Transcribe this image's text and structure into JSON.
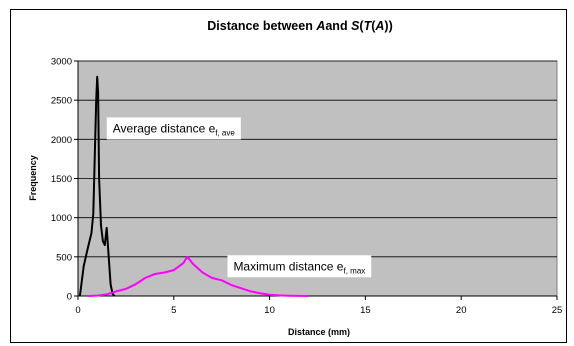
{
  "chart_data": {
    "type": "line",
    "title": {
      "prefix": "Distance between ",
      "A1": "A",
      "and": "and ",
      "S": "S",
      "open1": "(",
      "T": "T",
      "open2": "(",
      "A2": "A",
      "close": "))"
    },
    "xlabel": "Distance (mm)",
    "ylabel": "Frequency",
    "xlim": [
      0,
      25
    ],
    "ylim": [
      0,
      3000
    ],
    "xticks": [
      0,
      5,
      10,
      15,
      20,
      25
    ],
    "yticks": [
      0,
      500,
      1000,
      1500,
      2000,
      2500,
      3000
    ],
    "grid": "horizontal",
    "plot_background": "#c0c0c0",
    "series": [
      {
        "color": "#000000",
        "x": [
          0.1,
          0.3,
          0.5,
          0.7,
          0.8,
          0.9,
          0.95,
          1.0,
          1.05,
          1.1,
          1.2,
          1.3,
          1.4,
          1.5,
          1.6,
          1.7,
          1.8,
          1.9
        ],
        "y": [
          0,
          380,
          600,
          800,
          1050,
          2000,
          2500,
          2800,
          2600,
          1500,
          900,
          700,
          650,
          870,
          500,
          150,
          30,
          0
        ],
        "annotation": {
          "text": "Average distance e",
          "sub": "f, ave",
          "x": 1.5,
          "y": 2280
        }
      },
      {
        "color": "#ff00ff",
        "x": [
          0.5,
          1.0,
          1.5,
          2.0,
          2.5,
          3.0,
          3.5,
          4.0,
          4.5,
          5.0,
          5.5,
          5.7,
          6.0,
          6.5,
          7.0,
          7.5,
          8.0,
          8.5,
          9.0,
          9.5,
          10.0,
          10.5,
          11.0,
          12.0
        ],
        "y": [
          0,
          5,
          20,
          60,
          90,
          150,
          230,
          280,
          300,
          330,
          420,
          500,
          410,
          300,
          230,
          200,
          140,
          100,
          60,
          35,
          15,
          8,
          4,
          0
        ],
        "annotation": {
          "text": "Maximum distance e",
          "sub": "f, max",
          "x": 7.8,
          "y": 520
        }
      }
    ]
  }
}
